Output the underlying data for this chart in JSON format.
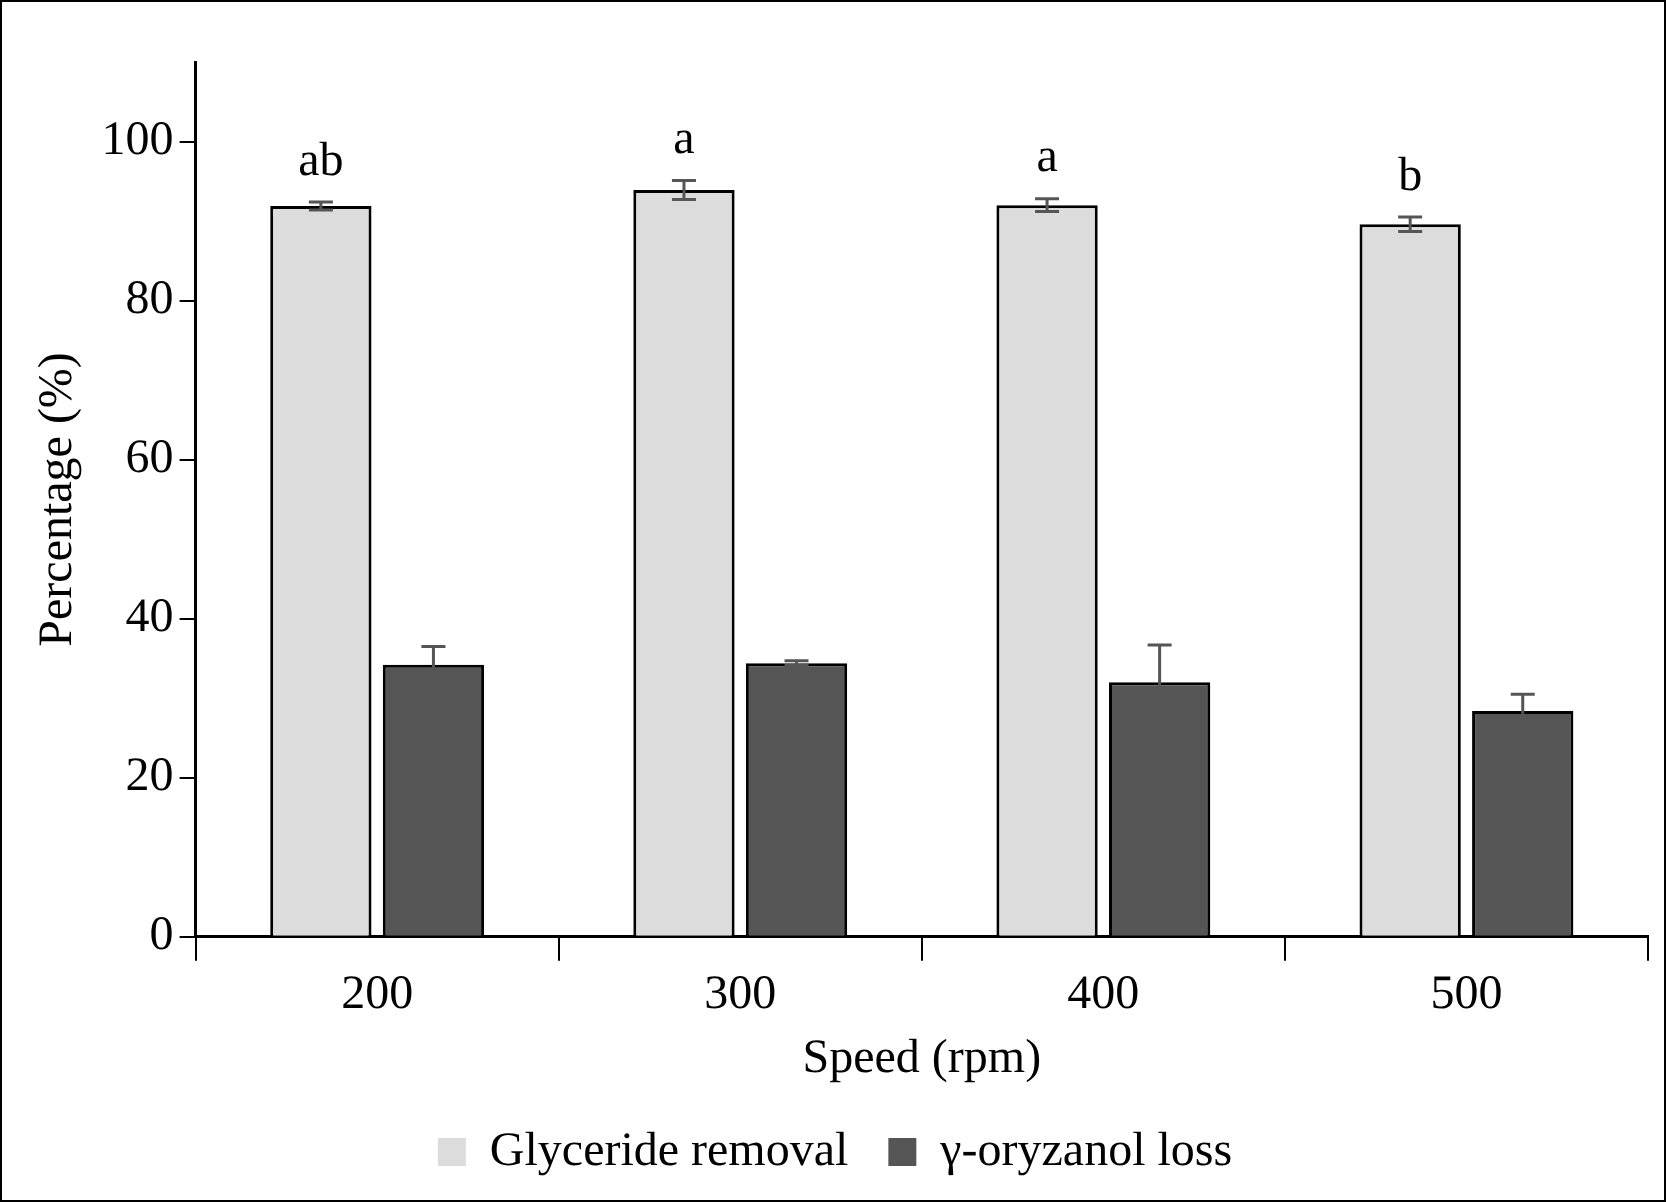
{
  "chart_data": {
    "type": "bar",
    "xlabel": "Speed (rpm)",
    "ylabel": "Percentage (%)",
    "categories": [
      "200",
      "300",
      "400",
      "500"
    ],
    "series": [
      {
        "name": "Glyceride removal",
        "color": "#dcdcdc",
        "values": [
          91.9,
          93.9,
          92.0,
          89.6
        ],
        "errors": [
          0.5,
          1.2,
          0.8,
          0.9
        ]
      },
      {
        "name": "γ-oryzanol loss",
        "color": "#555555",
        "values": [
          34.2,
          34.4,
          32.0,
          28.4
        ],
        "errors": [
          2.3,
          0.3,
          4.7,
          2.1
        ]
      }
    ],
    "annotations": [
      {
        "text": "ab",
        "x": "200",
        "y": 91.9
      },
      {
        "text": "a",
        "x": "300",
        "y": 93.9
      },
      {
        "text": "a",
        "x": "400",
        "y": 92.0
      },
      {
        "text": "b",
        "x": "500",
        "y": 89.6
      }
    ],
    "ylim": [
      0,
      110
    ],
    "yticks": [
      0,
      20,
      40,
      60,
      80,
      100
    ],
    "grid": false,
    "legend": "bottom"
  }
}
